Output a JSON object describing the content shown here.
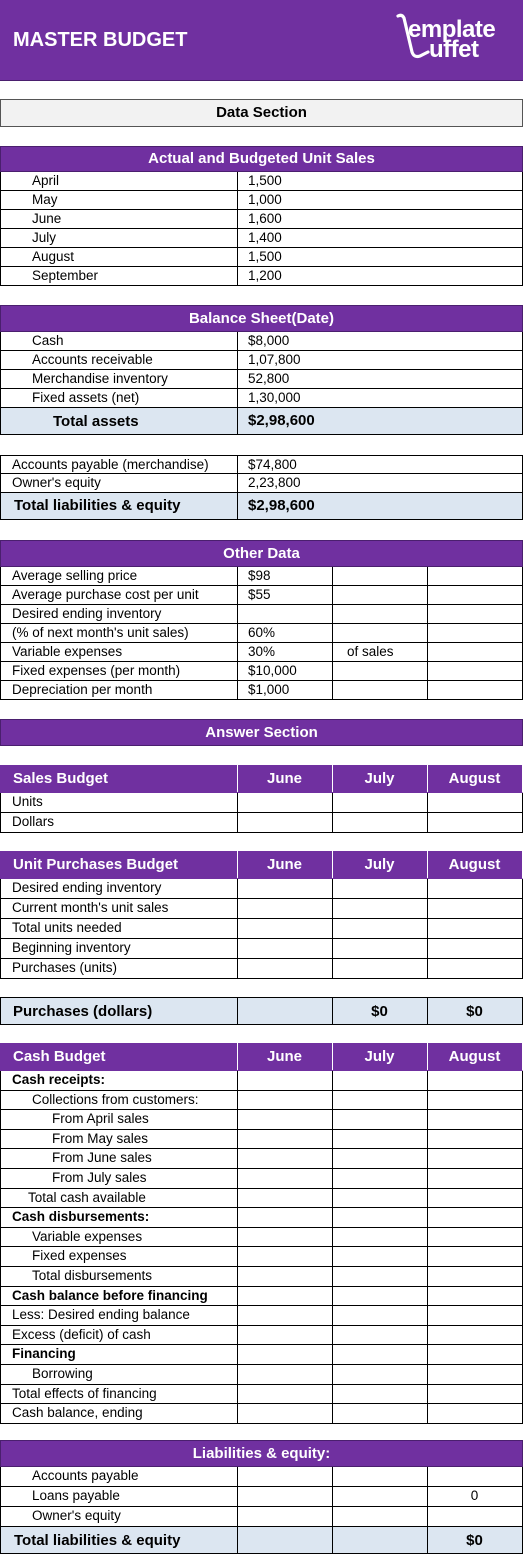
{
  "header": {
    "title": "MASTER BUDGET",
    "logo_line1": "emplate",
    "logo_line2": "uffet"
  },
  "data_section_title": "Data Section",
  "unit_sales": {
    "title": "Actual and Budgeted Unit Sales",
    "rows": [
      {
        "label": "April",
        "value": "1,500"
      },
      {
        "label": "May",
        "value": "1,000"
      },
      {
        "label": "June",
        "value": "1,600"
      },
      {
        "label": "July",
        "value": "1,400"
      },
      {
        "label": "August",
        "value": "1,500"
      },
      {
        "label": "September",
        "value": "1,200"
      }
    ]
  },
  "balance_sheet": {
    "title": "Balance Sheet(Date)",
    "assets": [
      {
        "label": "Cash",
        "value": "$8,000"
      },
      {
        "label": "Accounts receivable",
        "value": "1,07,800"
      },
      {
        "label": "Merchandise inventory",
        "value": "52,800"
      },
      {
        "label": "Fixed assets (net)",
        "value": "1,30,000"
      }
    ],
    "total_assets": {
      "label": "Total assets",
      "value": "$2,98,600"
    },
    "liabilities": [
      {
        "label": "Accounts payable (merchandise)",
        "value": "$74,800"
      },
      {
        "label": "Owner's equity",
        "value": "2,23,800"
      }
    ],
    "total_liabilities": {
      "label": "Total liabilities & equity",
      "value": "$2,98,600"
    }
  },
  "other_data": {
    "title": "Other Data",
    "rows": [
      {
        "label": "Average selling price",
        "value": "$98",
        "extra": ""
      },
      {
        "label": "Average purchase cost per unit",
        "value": "$55",
        "extra": ""
      },
      {
        "label": "Desired ending inventory",
        "value": "",
        "extra": ""
      },
      {
        "label": "(% of next month's unit sales)",
        "value": "60%",
        "extra": ""
      },
      {
        "label": "Variable expenses",
        "value": "30%",
        "extra": "of sales"
      },
      {
        "label": "Fixed expenses (per month)",
        "value": "$10,000",
        "extra": ""
      },
      {
        "label": "Depreciation per month",
        "value": "$1,000",
        "extra": ""
      }
    ]
  },
  "answer_section_title": "Answer Section",
  "months": [
    "June",
    "July",
    "August"
  ],
  "sales_budget": {
    "title": "Sales Budget",
    "rows": [
      "Units",
      "Dollars"
    ]
  },
  "unit_purchases_budget": {
    "title": "Unit Purchases Budget",
    "rows": [
      "Desired ending inventory",
      "Current month's unit sales",
      "Total units needed",
      "Beginning inventory",
      "Purchases (units)"
    ]
  },
  "purchases_dollars": {
    "label": "Purchases (dollars)",
    "june": "",
    "july": "$0",
    "august": "$0"
  },
  "cash_budget": {
    "title": "Cash Budget",
    "rows": [
      {
        "label": "Cash receipts:",
        "indent": 0,
        "bold": true
      },
      {
        "label": "Collections from customers:",
        "indent": 1,
        "bold": false
      },
      {
        "label": "From April sales",
        "indent": 2,
        "bold": false
      },
      {
        "label": "From May sales",
        "indent": 2,
        "bold": false
      },
      {
        "label": "From June sales",
        "indent": 2,
        "bold": false
      },
      {
        "label": "From July sales",
        "indent": 2,
        "bold": false
      },
      {
        "label": "Total cash available",
        "indent": 3,
        "bold": false
      },
      {
        "label": "Cash disbursements:",
        "indent": 0,
        "bold": true
      },
      {
        "label": "Variable expenses",
        "indent": 1,
        "bold": false
      },
      {
        "label": "Fixed expenses",
        "indent": 1,
        "bold": false
      },
      {
        "label": "Total disbursements",
        "indent": 1,
        "bold": false
      },
      {
        "label": "Cash balance before financing",
        "indent": 0,
        "bold": true
      },
      {
        "label": "Less:  Desired ending balance",
        "indent": 0,
        "bold": false
      },
      {
        "label": "Excess (deficit) of cash",
        "indent": 0,
        "bold": false
      },
      {
        "label": "Financing",
        "indent": 0,
        "bold": true
      },
      {
        "label": "Borrowing",
        "indent": 1,
        "bold": false
      },
      {
        "label": "Total effects of financing",
        "indent": 0,
        "bold": false
      },
      {
        "label": "Cash balance, ending",
        "indent": 0,
        "bold": false
      }
    ]
  },
  "liabilities_equity": {
    "title": "Liabilities & equity:",
    "rows": [
      {
        "label": "Accounts payable",
        "august": ""
      },
      {
        "label": "Loans payable",
        "august": "0"
      },
      {
        "label": "Owner's equity",
        "august": ""
      }
    ],
    "total": {
      "label": "Total liabilities & equity",
      "august": "$0"
    }
  }
}
